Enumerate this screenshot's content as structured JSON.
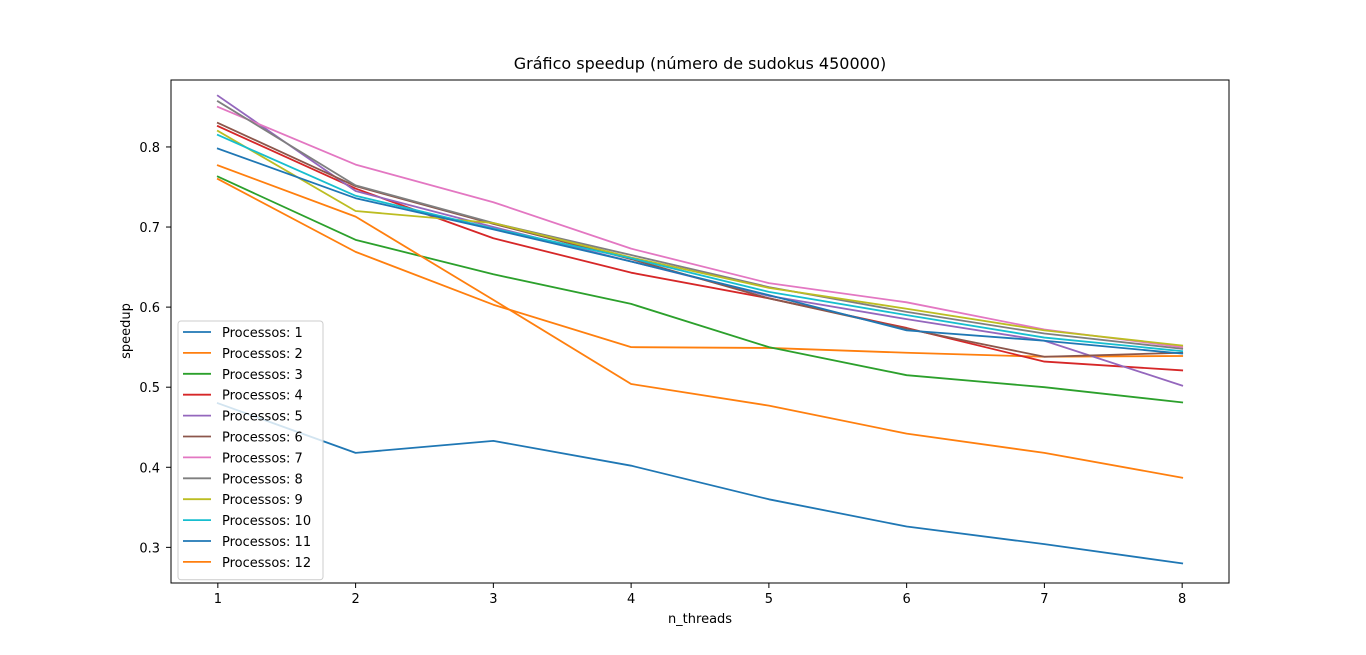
{
  "chart_data": {
    "type": "line",
    "title": "Gráfico speedup (número de sudokus 450000)",
    "xlabel": "n_threads",
    "ylabel": "speedup",
    "x": [
      1,
      2,
      3,
      4,
      5,
      6,
      7,
      8
    ],
    "xlim": [
      0.66,
      8.34
    ],
    "ylim": [
      0.2555,
      0.8836
    ],
    "xticks": [
      "1",
      "2",
      "3",
      "4",
      "5",
      "6",
      "7",
      "8"
    ],
    "yticks": [
      0.3,
      0.4,
      0.5,
      0.6,
      0.7,
      0.8
    ],
    "ytick_labels": [
      "0.3",
      "0.4",
      "0.5",
      "0.6",
      "0.7",
      "0.8"
    ],
    "grid": false,
    "legend_position": "lower-left",
    "series": [
      {
        "name": "Processos: 1",
        "color": "#1f77b4",
        "values": [
          0.48,
          0.418,
          0.433,
          0.402,
          0.36,
          0.326,
          0.304,
          0.28
        ]
      },
      {
        "name": "Processos: 2",
        "color": "#ff7f0e",
        "values": [
          0.76,
          0.669,
          0.603,
          0.55,
          0.549,
          0.543,
          0.538,
          0.539
        ]
      },
      {
        "name": "Processos: 3",
        "color": "#2ca02c",
        "values": [
          0.763,
          0.684,
          0.641,
          0.604,
          0.55,
          0.515,
          0.5,
          0.481
        ]
      },
      {
        "name": "Processos: 4",
        "color": "#d62728",
        "values": [
          0.826,
          0.748,
          0.686,
          0.643,
          0.611,
          0.574,
          0.532,
          0.521
        ]
      },
      {
        "name": "Processos: 5",
        "color": "#9467bd",
        "values": [
          0.864,
          0.745,
          0.7,
          0.657,
          0.614,
          0.585,
          0.558,
          0.502
        ]
      },
      {
        "name": "Processos: 6",
        "color": "#8c564b",
        "values": [
          0.83,
          0.751,
          0.704,
          0.66,
          0.611,
          0.573,
          0.538,
          0.543
        ]
      },
      {
        "name": "Processos: 7",
        "color": "#e377c2",
        "values": [
          0.85,
          0.778,
          0.731,
          0.673,
          0.63,
          0.606,
          0.572,
          0.55
        ]
      },
      {
        "name": "Processos: 8",
        "color": "#7f7f7f",
        "values": [
          0.857,
          0.752,
          0.705,
          0.665,
          0.625,
          0.594,
          0.567,
          0.548
        ]
      },
      {
        "name": "Processos: 9",
        "color": "#bcbd22",
        "values": [
          0.82,
          0.72,
          0.705,
          0.662,
          0.624,
          0.598,
          0.571,
          0.552
        ]
      },
      {
        "name": "Processos: 10",
        "color": "#17becf",
        "values": [
          0.815,
          0.739,
          0.698,
          0.661,
          0.619,
          0.59,
          0.562,
          0.545
        ]
      },
      {
        "name": "Processos: 11",
        "color": "#1f77b4",
        "values": [
          0.798,
          0.736,
          0.697,
          0.657,
          0.615,
          0.571,
          0.558,
          0.542
        ]
      },
      {
        "name": "Processos: 12",
        "color": "#ff7f0e",
        "values": [
          0.777,
          0.713,
          0.609,
          0.504,
          0.477,
          0.442,
          0.418,
          0.387
        ]
      }
    ]
  }
}
